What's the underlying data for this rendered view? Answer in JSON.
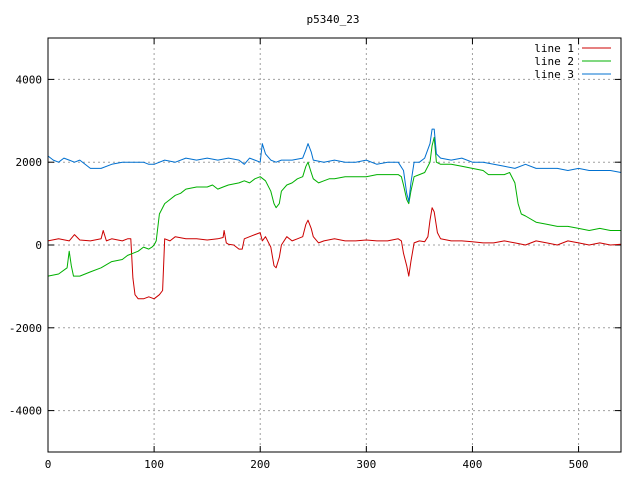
{
  "chart_data": {
    "type": "line",
    "title": "p5340_23",
    "xlabel": "",
    "ylabel": "",
    "xlim": [
      0,
      540
    ],
    "ylim": [
      -5000,
      5000
    ],
    "x_ticks": [
      0,
      100,
      200,
      300,
      400,
      500
    ],
    "y_ticks": [
      -4000,
      -2000,
      0,
      2000,
      4000
    ],
    "grid": true,
    "legend_position": "top-right",
    "series": [
      {
        "name": "line 1",
        "color": "#cc0000",
        "points": [
          [
            0,
            100
          ],
          [
            10,
            150
          ],
          [
            20,
            100
          ],
          [
            25,
            250
          ],
          [
            30,
            120
          ],
          [
            40,
            100
          ],
          [
            50,
            150
          ],
          [
            52,
            350
          ],
          [
            55,
            100
          ],
          [
            60,
            150
          ],
          [
            70,
            100
          ],
          [
            75,
            150
          ],
          [
            78,
            150
          ],
          [
            80,
            -800
          ],
          [
            82,
            -1200
          ],
          [
            85,
            -1300
          ],
          [
            90,
            -1300
          ],
          [
            95,
            -1250
          ],
          [
            100,
            -1300
          ],
          [
            105,
            -1200
          ],
          [
            108,
            -1100
          ],
          [
            110,
            150
          ],
          [
            115,
            100
          ],
          [
            120,
            200
          ],
          [
            130,
            150
          ],
          [
            140,
            150
          ],
          [
            150,
            120
          ],
          [
            160,
            150
          ],
          [
            165,
            180
          ],
          [
            166,
            350
          ],
          [
            168,
            50
          ],
          [
            170,
            20
          ],
          [
            175,
            0
          ],
          [
            180,
            -100
          ],
          [
            183,
            -100
          ],
          [
            185,
            150
          ],
          [
            190,
            200
          ],
          [
            195,
            250
          ],
          [
            200,
            300
          ],
          [
            202,
            100
          ],
          [
            205,
            200
          ],
          [
            210,
            -50
          ],
          [
            213,
            -500
          ],
          [
            215,
            -550
          ],
          [
            218,
            -300
          ],
          [
            220,
            0
          ],
          [
            225,
            200
          ],
          [
            230,
            100
          ],
          [
            235,
            150
          ],
          [
            240,
            200
          ],
          [
            243,
            500
          ],
          [
            245,
            600
          ],
          [
            248,
            400
          ],
          [
            250,
            200
          ],
          [
            255,
            50
          ],
          [
            260,
            100
          ],
          [
            270,
            150
          ],
          [
            280,
            100
          ],
          [
            290,
            100
          ],
          [
            300,
            120
          ],
          [
            310,
            100
          ],
          [
            320,
            100
          ],
          [
            330,
            150
          ],
          [
            333,
            100
          ],
          [
            335,
            -200
          ],
          [
            338,
            -500
          ],
          [
            340,
            -750
          ],
          [
            342,
            -400
          ],
          [
            345,
            50
          ],
          [
            350,
            100
          ],
          [
            355,
            80
          ],
          [
            358,
            200
          ],
          [
            360,
            600
          ],
          [
            362,
            900
          ],
          [
            364,
            800
          ],
          [
            367,
            300
          ],
          [
            370,
            150
          ],
          [
            380,
            100
          ],
          [
            390,
            100
          ],
          [
            400,
            80
          ],
          [
            410,
            50
          ],
          [
            420,
            50
          ],
          [
            430,
            100
          ],
          [
            440,
            50
          ],
          [
            450,
            0
          ],
          [
            460,
            100
          ],
          [
            470,
            50
          ],
          [
            480,
            0
          ],
          [
            490,
            100
          ],
          [
            500,
            50
          ],
          [
            510,
            0
          ],
          [
            520,
            50
          ],
          [
            530,
            0
          ],
          [
            540,
            20
          ]
        ]
      },
      {
        "name": "line 2",
        "color": "#00b000",
        "points": [
          [
            0,
            -750
          ],
          [
            10,
            -700
          ],
          [
            18,
            -550
          ],
          [
            20,
            -150
          ],
          [
            22,
            -500
          ],
          [
            24,
            -750
          ],
          [
            30,
            -750
          ],
          [
            40,
            -650
          ],
          [
            50,
            -550
          ],
          [
            60,
            -400
          ],
          [
            70,
            -350
          ],
          [
            75,
            -250
          ],
          [
            80,
            -200
          ],
          [
            85,
            -150
          ],
          [
            90,
            -50
          ],
          [
            95,
            -100
          ],
          [
            98,
            -50
          ],
          [
            100,
            0
          ],
          [
            102,
            100
          ],
          [
            105,
            750
          ],
          [
            110,
            1000
          ],
          [
            115,
            1100
          ],
          [
            120,
            1200
          ],
          [
            125,
            1250
          ],
          [
            130,
            1350
          ],
          [
            140,
            1400
          ],
          [
            150,
            1400
          ],
          [
            155,
            1450
          ],
          [
            160,
            1350
          ],
          [
            165,
            1400
          ],
          [
            170,
            1450
          ],
          [
            180,
            1500
          ],
          [
            185,
            1550
          ],
          [
            190,
            1500
          ],
          [
            195,
            1600
          ],
          [
            200,
            1650
          ],
          [
            205,
            1550
          ],
          [
            210,
            1300
          ],
          [
            213,
            1000
          ],
          [
            215,
            900
          ],
          [
            218,
            1000
          ],
          [
            220,
            1300
          ],
          [
            225,
            1450
          ],
          [
            230,
            1500
          ],
          [
            235,
            1600
          ],
          [
            240,
            1650
          ],
          [
            243,
            1900
          ],
          [
            245,
            2000
          ],
          [
            248,
            1750
          ],
          [
            250,
            1600
          ],
          [
            255,
            1500
          ],
          [
            260,
            1550
          ],
          [
            265,
            1600
          ],
          [
            270,
            1600
          ],
          [
            280,
            1650
          ],
          [
            290,
            1650
          ],
          [
            300,
            1650
          ],
          [
            310,
            1700
          ],
          [
            320,
            1700
          ],
          [
            330,
            1700
          ],
          [
            333,
            1650
          ],
          [
            335,
            1450
          ],
          [
            338,
            1100
          ],
          [
            340,
            1000
          ],
          [
            342,
            1300
          ],
          [
            345,
            1650
          ],
          [
            350,
            1700
          ],
          [
            355,
            1750
          ],
          [
            360,
            2000
          ],
          [
            362,
            2400
          ],
          [
            364,
            2600
          ],
          [
            366,
            2000
          ],
          [
            370,
            1950
          ],
          [
            380,
            1950
          ],
          [
            390,
            1900
          ],
          [
            400,
            1850
          ],
          [
            410,
            1800
          ],
          [
            415,
            1700
          ],
          [
            420,
            1700
          ],
          [
            430,
            1700
          ],
          [
            435,
            1750
          ],
          [
            440,
            1500
          ],
          [
            443,
            1000
          ],
          [
            446,
            750
          ],
          [
            450,
            700
          ],
          [
            460,
            550
          ],
          [
            470,
            500
          ],
          [
            480,
            450
          ],
          [
            490,
            450
          ],
          [
            500,
            400
          ],
          [
            510,
            350
          ],
          [
            520,
            400
          ],
          [
            530,
            350
          ],
          [
            540,
            350
          ]
        ]
      },
      {
        "name": "line 3",
        "color": "#0070d0",
        "points": [
          [
            0,
            2150
          ],
          [
            5,
            2050
          ],
          [
            10,
            2000
          ],
          [
            15,
            2100
          ],
          [
            20,
            2050
          ],
          [
            25,
            2000
          ],
          [
            30,
            2050
          ],
          [
            40,
            1850
          ],
          [
            50,
            1850
          ],
          [
            60,
            1950
          ],
          [
            70,
            2000
          ],
          [
            80,
            2000
          ],
          [
            90,
            2000
          ],
          [
            95,
            1950
          ],
          [
            100,
            1950
          ],
          [
            110,
            2050
          ],
          [
            120,
            2000
          ],
          [
            130,
            2100
          ],
          [
            140,
            2050
          ],
          [
            150,
            2100
          ],
          [
            160,
            2050
          ],
          [
            170,
            2100
          ],
          [
            180,
            2050
          ],
          [
            185,
            1950
          ],
          [
            190,
            2100
          ],
          [
            195,
            2050
          ],
          [
            200,
            2000
          ],
          [
            202,
            2450
          ],
          [
            205,
            2200
          ],
          [
            210,
            2050
          ],
          [
            215,
            2000
          ],
          [
            220,
            2050
          ],
          [
            230,
            2050
          ],
          [
            240,
            2100
          ],
          [
            243,
            2300
          ],
          [
            245,
            2450
          ],
          [
            248,
            2250
          ],
          [
            250,
            2050
          ],
          [
            260,
            2000
          ],
          [
            270,
            2050
          ],
          [
            280,
            2000
          ],
          [
            290,
            2000
          ],
          [
            300,
            2050
          ],
          [
            310,
            1950
          ],
          [
            320,
            2000
          ],
          [
            330,
            2000
          ],
          [
            335,
            1800
          ],
          [
            338,
            1250
          ],
          [
            340,
            1050
          ],
          [
            342,
            1500
          ],
          [
            345,
            2000
          ],
          [
            350,
            2000
          ],
          [
            355,
            2100
          ],
          [
            360,
            2450
          ],
          [
            362,
            2800
          ],
          [
            364,
            2800
          ],
          [
            366,
            2200
          ],
          [
            370,
            2100
          ],
          [
            380,
            2050
          ],
          [
            390,
            2100
          ],
          [
            400,
            2000
          ],
          [
            410,
            2000
          ],
          [
            420,
            1950
          ],
          [
            430,
            1900
          ],
          [
            440,
            1850
          ],
          [
            450,
            1950
          ],
          [
            460,
            1850
          ],
          [
            470,
            1850
          ],
          [
            480,
            1850
          ],
          [
            490,
            1800
          ],
          [
            500,
            1850
          ],
          [
            510,
            1800
          ],
          [
            520,
            1800
          ],
          [
            530,
            1800
          ],
          [
            540,
            1750
          ]
        ]
      }
    ]
  }
}
